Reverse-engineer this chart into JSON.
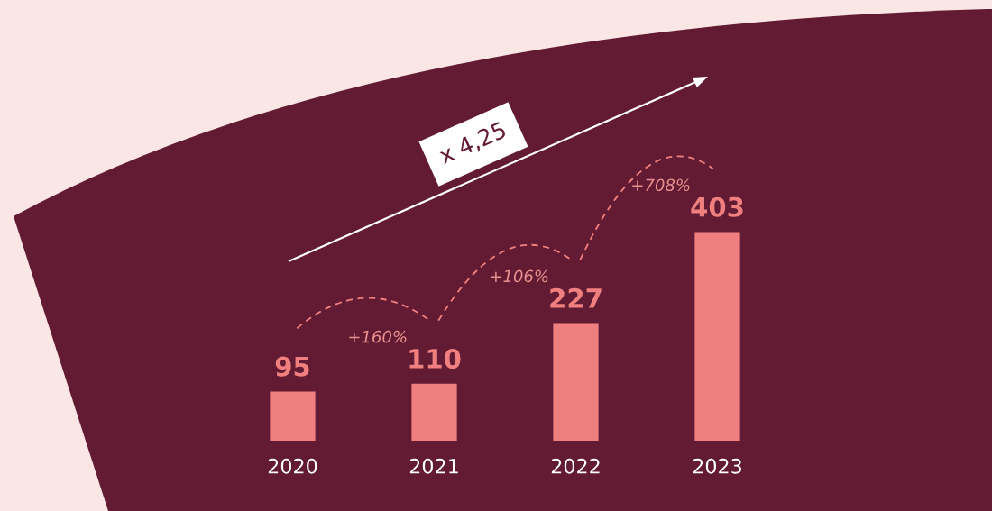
{
  "chart_data": {
    "type": "bar",
    "categories": [
      "2020",
      "2021",
      "2022",
      "2023"
    ],
    "values": [
      95,
      110,
      227,
      403
    ],
    "color": "#f08080",
    "data_labels": true,
    "grid": false,
    "legend": false,
    "annotations": [
      "+160%",
      "+106%",
      "+708%",
      "x 4,25"
    ]
  }
}
